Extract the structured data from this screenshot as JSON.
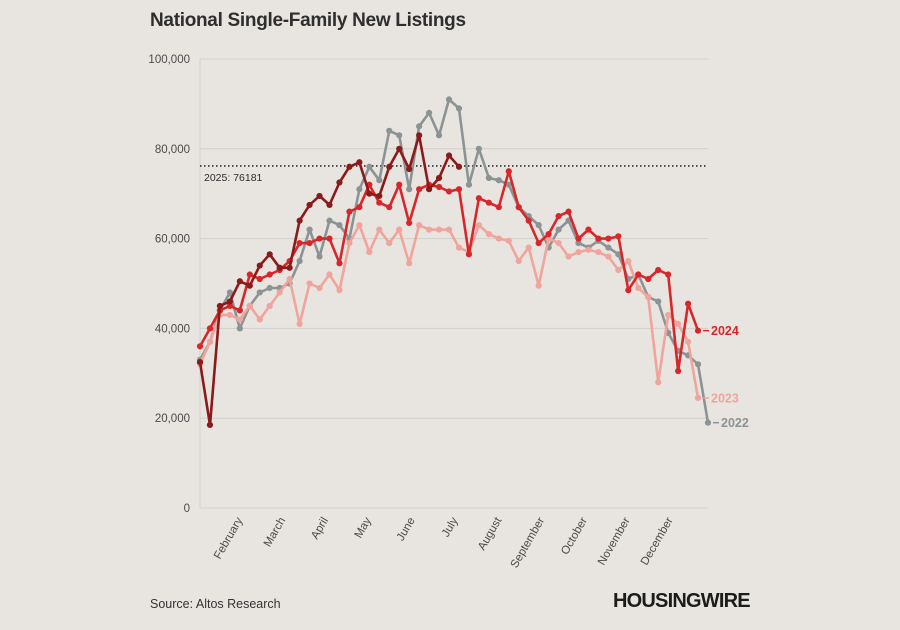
{
  "title": "National Single-Family New Listings",
  "source": "Source: Altos Research",
  "logo": "HOUSINGWIRE",
  "chart_data": {
    "type": "line",
    "title": "National Single-Family New Listings",
    "ylim": [
      0,
      100000
    ],
    "y_ticks": [
      0,
      20000,
      40000,
      60000,
      80000,
      100000
    ],
    "y_tick_labels": [
      "0",
      "20,000",
      "40,000",
      "60,000",
      "80,000",
      "100,000"
    ],
    "x_unit": "week of year",
    "xlim": [
      1,
      52
    ],
    "x_ticks": [
      {
        "week": 5.3,
        "label": "February"
      },
      {
        "week": 9.6,
        "label": "March"
      },
      {
        "week": 13.9,
        "label": "April"
      },
      {
        "week": 18.2,
        "label": "May"
      },
      {
        "week": 22.6,
        "label": "June"
      },
      {
        "week": 26.9,
        "label": "July"
      },
      {
        "week": 31.3,
        "label": "August"
      },
      {
        "week": 35.6,
        "label": "September"
      },
      {
        "week": 39.9,
        "label": "October"
      },
      {
        "week": 44.2,
        "label": "November"
      },
      {
        "week": 48.5,
        "label": "December"
      }
    ],
    "grid": true,
    "reference_line": {
      "value": 76181,
      "label": "2025: 76181"
    },
    "series": [
      {
        "name": "2022",
        "color": "#8c9394",
        "values": [
          33000,
          37000,
          44000,
          48000,
          40000,
          45000,
          48000,
          49000,
          49000,
          50000,
          55000,
          62000,
          56000,
          64000,
          63000,
          60000,
          71000,
          76000,
          73000,
          84000,
          83000,
          71000,
          85000,
          88000,
          83000,
          91000,
          89000,
          72000,
          80000,
          73500,
          73000,
          72000,
          67000,
          65000,
          63000,
          58000,
          62000,
          64000,
          59000,
          58000,
          59500,
          58000,
          56500,
          51000,
          52000,
          47000,
          46000,
          39000,
          35000,
          34000,
          32000,
          19000
        ]
      },
      {
        "name": "2023",
        "color": "#f0a49c",
        "values": [
          32000,
          37000,
          43000,
          43000,
          42000,
          45000,
          42000,
          45000,
          48000,
          51000,
          41000,
          50000,
          49000,
          52000,
          48500,
          59000,
          63000,
          57000,
          62000,
          59000,
          62000,
          54500,
          63000,
          62000,
          62000,
          62000,
          58000,
          57000,
          63000,
          61000,
          60000,
          59500,
          55000,
          58000,
          49500,
          60000,
          59000,
          56000,
          57000,
          57500,
          57000,
          56000,
          53000,
          55000,
          49000,
          47000,
          28000,
          43000,
          41000,
          37000,
          24500
        ]
      },
      {
        "name": "2024",
        "color": "#d6282b",
        "values": [
          36000,
          40000,
          44000,
          45000,
          44000,
          52000,
          51000,
          52000,
          53000,
          55000,
          59000,
          59000,
          60000,
          60000,
          54500,
          66000,
          67000,
          72000,
          68000,
          67000,
          72000,
          63500,
          71000,
          72000,
          71500,
          70500,
          71000,
          56500,
          69000,
          68000,
          67000,
          75000,
          67000,
          64000,
          59000,
          61000,
          65000,
          66000,
          60000,
          62000,
          60000,
          60000,
          60500,
          48500,
          52000,
          51000,
          53000,
          52000,
          30500,
          45500,
          39500
        ]
      },
      {
        "name": "2025",
        "color": "#8b1a1a",
        "values": [
          32500,
          18500,
          45000,
          46000,
          50500,
          49500,
          54000,
          56500,
          53500,
          53500,
          64000,
          67500,
          69500,
          67500,
          72500,
          76000,
          77000,
          70000,
          69500,
          76000,
          80000,
          75500,
          83000,
          71000,
          73500,
          78500,
          76000
        ]
      }
    ]
  }
}
